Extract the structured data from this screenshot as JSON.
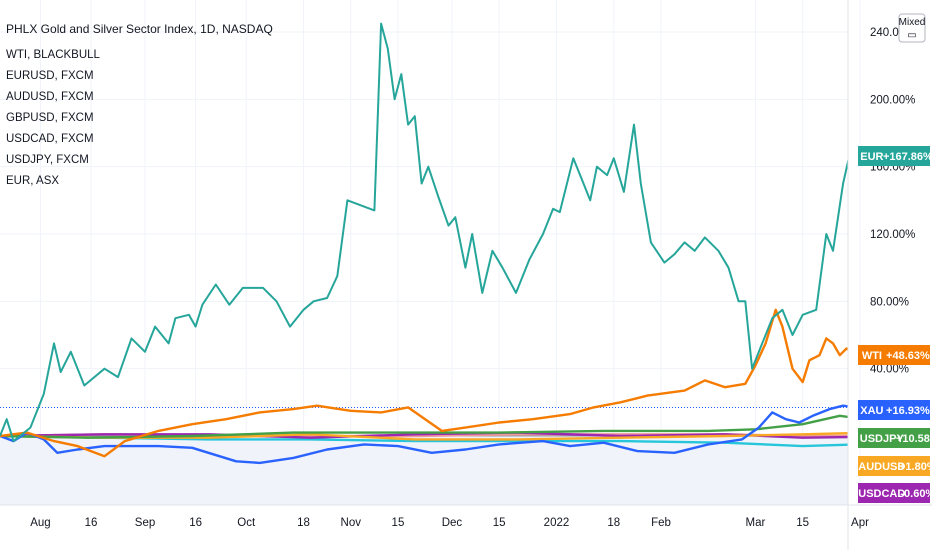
{
  "chart_data": {
    "type": "line",
    "title": "PHLX Gold and Silver Sector Index, 1D, NASDAQ",
    "legend": [
      "WTI, BLACKBULL",
      "EURUSD, FXCM",
      "AUDUSD, FXCM",
      "GBPUSD, FXCM",
      "USDCAD, FXCM",
      "USDJPY, FXCM",
      "EUR, ASX"
    ],
    "scale_button": "Mixed",
    "x_ticks": [
      {
        "label": "Aug",
        "date": "2021-08-01"
      },
      {
        "label": "16",
        "date": "2021-08-16"
      },
      {
        "label": "Sep",
        "date": "2021-09-01"
      },
      {
        "label": "16",
        "date": "2021-09-16"
      },
      {
        "label": "Oct",
        "date": "2021-10-01"
      },
      {
        "label": "18",
        "date": "2021-10-18"
      },
      {
        "label": "Nov",
        "date": "2021-11-01"
      },
      {
        "label": "15",
        "date": "2021-11-15"
      },
      {
        "label": "Dec",
        "date": "2021-12-01"
      },
      {
        "label": "15",
        "date": "2021-12-15"
      },
      {
        "label": "2022",
        "date": "2022-01-01"
      },
      {
        "label": "18",
        "date": "2022-01-18"
      },
      {
        "label": "Feb",
        "date": "2022-02-01"
      },
      {
        "label": "Mar",
        "date": "2022-03-01"
      },
      {
        "label": "15",
        "date": "2022-03-15"
      },
      {
        "label": "Apr",
        "date": "2022-04-01"
      }
    ],
    "y_ticks": [
      {
        "label": "240.00%",
        "value": 240
      },
      {
        "label": "200.00%",
        "value": 200
      },
      {
        "label": "160.00%",
        "value": 160
      },
      {
        "label": "120.00%",
        "value": 120
      },
      {
        "label": "80.00%",
        "value": 80
      },
      {
        "label": "40.00%",
        "value": 40
      }
    ],
    "x_range": [
      "2021-07-20",
      "2022-04-01"
    ],
    "y_range": [
      -30,
      250
    ],
    "baseline_value": 0,
    "ref_line_value": 16.93,
    "series": [
      {
        "name": "EUR",
        "color": "#26a69a",
        "last": "+167.86%",
        "last_value": 167.86,
        "points": [
          [
            "2021-07-20",
            0
          ],
          [
            "2021-07-22",
            10
          ],
          [
            "2021-07-24",
            -3
          ],
          [
            "2021-07-29",
            5
          ],
          [
            "2021-08-02",
            25
          ],
          [
            "2021-08-05",
            55
          ],
          [
            "2021-08-07",
            38
          ],
          [
            "2021-08-10",
            50
          ],
          [
            "2021-08-14",
            30
          ],
          [
            "2021-08-20",
            40
          ],
          [
            "2021-08-24",
            35
          ],
          [
            "2021-08-28",
            58
          ],
          [
            "2021-09-01",
            50
          ],
          [
            "2021-09-04",
            65
          ],
          [
            "2021-09-08",
            55
          ],
          [
            "2021-09-10",
            70
          ],
          [
            "2021-09-14",
            72
          ],
          [
            "2021-09-16",
            65
          ],
          [
            "2021-09-18",
            78
          ],
          [
            "2021-09-22",
            90
          ],
          [
            "2021-09-26",
            78
          ],
          [
            "2021-09-30",
            88
          ],
          [
            "2021-10-06",
            88
          ],
          [
            "2021-10-10",
            80
          ],
          [
            "2021-10-14",
            65
          ],
          [
            "2021-10-18",
            75
          ],
          [
            "2021-10-21",
            80
          ],
          [
            "2021-10-25",
            82
          ],
          [
            "2021-10-28",
            95
          ],
          [
            "2021-10-31",
            140
          ],
          [
            "2021-11-08",
            134
          ],
          [
            "2021-11-10",
            245
          ],
          [
            "2021-11-12",
            230
          ],
          [
            "2021-11-14",
            200
          ],
          [
            "2021-11-16",
            215
          ],
          [
            "2021-11-18",
            185
          ],
          [
            "2021-11-20",
            190
          ],
          [
            "2021-11-22",
            150
          ],
          [
            "2021-11-24",
            160
          ],
          [
            "2021-11-27",
            142
          ],
          [
            "2021-11-30",
            125
          ],
          [
            "2021-12-02",
            130
          ],
          [
            "2021-12-05",
            100
          ],
          [
            "2021-12-07",
            120
          ],
          [
            "2021-12-10",
            85
          ],
          [
            "2021-12-13",
            110
          ],
          [
            "2021-12-16",
            100
          ],
          [
            "2021-12-20",
            85
          ],
          [
            "2021-12-24",
            105
          ],
          [
            "2021-12-28",
            120
          ],
          [
            "2021-12-31",
            135
          ],
          [
            "2022-01-02",
            133
          ],
          [
            "2022-01-06",
            165
          ],
          [
            "2022-01-09",
            150
          ],
          [
            "2022-01-11",
            140
          ],
          [
            "2022-01-13",
            160
          ],
          [
            "2022-01-16",
            155
          ],
          [
            "2022-01-18",
            165
          ],
          [
            "2022-01-21",
            145
          ],
          [
            "2022-01-24",
            185
          ],
          [
            "2022-01-26",
            150
          ],
          [
            "2022-01-29",
            115
          ],
          [
            "2022-02-02",
            103
          ],
          [
            "2022-02-05",
            108
          ],
          [
            "2022-02-08",
            115
          ],
          [
            "2022-02-11",
            110
          ],
          [
            "2022-02-14",
            118
          ],
          [
            "2022-02-18",
            110
          ],
          [
            "2022-02-21",
            100
          ],
          [
            "2022-02-24",
            80
          ],
          [
            "2022-02-26",
            80
          ],
          [
            "2022-02-28",
            40
          ],
          [
            "2022-03-03",
            55
          ],
          [
            "2022-03-06",
            70
          ],
          [
            "2022-03-09",
            75
          ],
          [
            "2022-03-12",
            60
          ],
          [
            "2022-03-15",
            72
          ],
          [
            "2022-03-19",
            75
          ],
          [
            "2022-03-22",
            120
          ],
          [
            "2022-03-24",
            110
          ],
          [
            "2022-03-27",
            150
          ],
          [
            "2022-03-29",
            168
          ],
          [
            "2022-03-31",
            168
          ]
        ]
      },
      {
        "name": "WTI",
        "color": "#f57c00",
        "last": "+48.63%",
        "last_value": 48.63,
        "points": [
          [
            "2021-07-20",
            0
          ],
          [
            "2021-07-28",
            2
          ],
          [
            "2021-08-05",
            -3
          ],
          [
            "2021-08-12",
            -6
          ],
          [
            "2021-08-20",
            -12
          ],
          [
            "2021-08-26",
            -3
          ],
          [
            "2021-09-05",
            3
          ],
          [
            "2021-09-15",
            7
          ],
          [
            "2021-09-25",
            10
          ],
          [
            "2021-10-05",
            14
          ],
          [
            "2021-10-15",
            16
          ],
          [
            "2021-10-22",
            18
          ],
          [
            "2021-11-01",
            15
          ],
          [
            "2021-11-10",
            14
          ],
          [
            "2021-11-18",
            17
          ],
          [
            "2021-11-28",
            3
          ],
          [
            "2021-12-05",
            5
          ],
          [
            "2021-12-15",
            8
          ],
          [
            "2021-12-25",
            10
          ],
          [
            "2022-01-05",
            13
          ],
          [
            "2022-01-12",
            17
          ],
          [
            "2022-01-20",
            20
          ],
          [
            "2022-01-28",
            24
          ],
          [
            "2022-02-08",
            27
          ],
          [
            "2022-02-14",
            33
          ],
          [
            "2022-02-20",
            29
          ],
          [
            "2022-02-26",
            31
          ],
          [
            "2022-03-01",
            42
          ],
          [
            "2022-03-04",
            55
          ],
          [
            "2022-03-07",
            75
          ],
          [
            "2022-03-09",
            65
          ],
          [
            "2022-03-12",
            40
          ],
          [
            "2022-03-15",
            32
          ],
          [
            "2022-03-17",
            45
          ],
          [
            "2022-03-20",
            48
          ],
          [
            "2022-03-22",
            58
          ],
          [
            "2022-03-24",
            55
          ],
          [
            "2022-03-26",
            48
          ],
          [
            "2022-03-28",
            52
          ],
          [
            "2022-03-31",
            48
          ]
        ]
      },
      {
        "name": "XAU",
        "color": "#2962ff",
        "last": "+16.93%",
        "last_value": 16.93,
        "points": [
          [
            "2021-07-20",
            0
          ],
          [
            "2021-07-24",
            -3
          ],
          [
            "2021-07-28",
            2
          ],
          [
            "2021-08-02",
            -2
          ],
          [
            "2021-08-06",
            -10
          ],
          [
            "2021-08-12",
            -8
          ],
          [
            "2021-08-20",
            -6
          ],
          [
            "2021-09-05",
            -6
          ],
          [
            "2021-09-15",
            -7
          ],
          [
            "2021-09-28",
            -15
          ],
          [
            "2021-10-05",
            -16
          ],
          [
            "2021-10-15",
            -13
          ],
          [
            "2021-10-25",
            -8
          ],
          [
            "2021-11-05",
            -5
          ],
          [
            "2021-11-15",
            -6
          ],
          [
            "2021-11-25",
            -10
          ],
          [
            "2021-12-05",
            -8
          ],
          [
            "2021-12-15",
            -5
          ],
          [
            "2021-12-28",
            -3
          ],
          [
            "2022-01-05",
            -6
          ],
          [
            "2022-01-15",
            -4
          ],
          [
            "2022-01-25",
            -9
          ],
          [
            "2022-02-05",
            -10
          ],
          [
            "2022-02-15",
            -5
          ],
          [
            "2022-02-25",
            -2
          ],
          [
            "2022-03-02",
            5
          ],
          [
            "2022-03-06",
            14
          ],
          [
            "2022-03-10",
            10
          ],
          [
            "2022-03-14",
            8
          ],
          [
            "2022-03-18",
            12
          ],
          [
            "2022-03-23",
            16
          ],
          [
            "2022-03-27",
            18
          ],
          [
            "2022-03-31",
            17
          ]
        ]
      },
      {
        "name": "USDJPY",
        "color": "#43a047",
        "last": "+10.58%",
        "last_value": 10.58,
        "points": [
          [
            "2021-07-20",
            0
          ],
          [
            "2021-08-15",
            -1
          ],
          [
            "2021-09-15",
            0
          ],
          [
            "2021-10-15",
            2
          ],
          [
            "2021-11-15",
            2
          ],
          [
            "2021-12-15",
            2
          ],
          [
            "2022-01-15",
            3
          ],
          [
            "2022-02-15",
            3
          ],
          [
            "2022-03-01",
            4
          ],
          [
            "2022-03-15",
            7
          ],
          [
            "2022-03-26",
            12
          ],
          [
            "2022-03-31",
            10.58
          ]
        ]
      },
      {
        "name": "AUDUSD",
        "color": "#f9a825",
        "last": "+1.80%",
        "last_value": 1.8,
        "points": [
          [
            "2021-07-20",
            0
          ],
          [
            "2021-08-20",
            -1
          ],
          [
            "2021-09-20",
            -1
          ],
          [
            "2021-10-20",
            1
          ],
          [
            "2021-11-20",
            -2
          ],
          [
            "2021-12-20",
            -2
          ],
          [
            "2022-01-20",
            -1
          ],
          [
            "2022-02-20",
            0
          ],
          [
            "2022-03-15",
            1
          ],
          [
            "2022-03-31",
            1.8
          ]
        ]
      },
      {
        "name": "USDCAD",
        "color": "#9c27b0",
        "last": "-0.60%",
        "last_value": -0.6,
        "points": [
          [
            "2021-07-20",
            0
          ],
          [
            "2021-08-20",
            1
          ],
          [
            "2021-09-20",
            1
          ],
          [
            "2021-10-20",
            -1
          ],
          [
            "2021-11-20",
            1
          ],
          [
            "2021-12-20",
            2
          ],
          [
            "2022-01-20",
            0
          ],
          [
            "2022-02-20",
            1
          ],
          [
            "2022-03-15",
            -1
          ],
          [
            "2022-03-31",
            -0.6
          ]
        ]
      },
      {
        "name": "EURUSD",
        "color": "#26c6da",
        "last": "",
        "last_value": -5,
        "points": [
          [
            "2021-07-20",
            0
          ],
          [
            "2021-08-20",
            -1
          ],
          [
            "2021-09-20",
            -2
          ],
          [
            "2021-10-20",
            -2
          ],
          [
            "2021-11-20",
            -3
          ],
          [
            "2021-12-20",
            -3
          ],
          [
            "2022-01-20",
            -3
          ],
          [
            "2022-02-20",
            -4
          ],
          [
            "2022-03-15",
            -6
          ],
          [
            "2022-03-31",
            -5
          ]
        ]
      },
      {
        "name": "GBPUSD",
        "color": "#ef9a9a",
        "last": "",
        "last_value": 0,
        "points": [
          [
            "2021-07-20",
            0
          ],
          [
            "2021-08-20",
            1
          ],
          [
            "2021-09-20",
            0
          ],
          [
            "2021-10-20",
            0
          ],
          [
            "2021-11-20",
            0
          ],
          [
            "2021-12-20",
            1
          ],
          [
            "2022-01-20",
            1
          ],
          [
            "2022-02-20",
            1
          ],
          [
            "2022-03-15",
            0
          ],
          [
            "2022-03-31",
            0
          ]
        ]
      }
    ]
  }
}
